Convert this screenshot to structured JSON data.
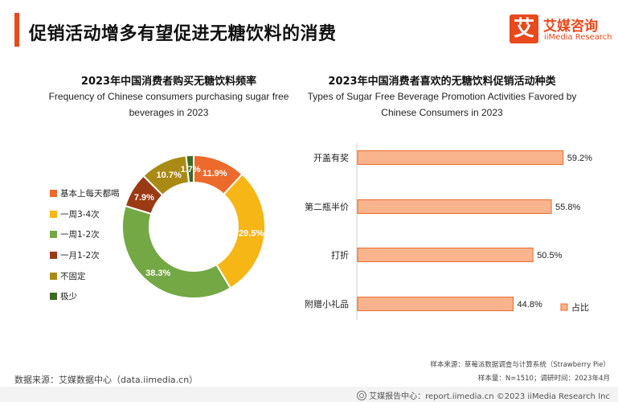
{
  "header": {
    "title": "促销活动增多有望促进无糖饮料的消费",
    "logo_mark": "艾",
    "logo_cn": "艾媒咨询",
    "logo_en": "iiMedia Research"
  },
  "footer": {
    "data_source": "数据来源：艾媒数据中心（data.iimedia.cn）",
    "sample_source": "样本来源：草莓派数据调查与计算系统（Strawberry Pie）",
    "sample_size": "样本量：N=1510；调研时间：2023年4月",
    "report_line": "艾媒报告中心：report.iimedia.cn ©2023 iiMedia Research Inc"
  },
  "chart_data": [
    {
      "type": "pie",
      "variant": "donut",
      "title": "2023年中国消费者购买无糖饮料频率",
      "subtitle": "Frequency of Chinese consumers purchasing sugar free beverages in 2023",
      "legend_position": "left",
      "slices": [
        {
          "label": "基本上每天都喝",
          "value": 11.9,
          "display": "11.9%",
          "color": "#ec6a2b"
        },
        {
          "label": "一周3-4次",
          "value": 29.5,
          "display": "29.5%",
          "color": "#f5b616"
        },
        {
          "label": "一周1-2次",
          "value": 38.3,
          "display": "38.3%",
          "color": "#73a845"
        },
        {
          "label": "一月1-2次",
          "value": 7.9,
          "display": "7.9%",
          "color": "#9a3a14"
        },
        {
          "label": "不固定",
          "value": 10.7,
          "display": "10.7%",
          "color": "#a98a14"
        },
        {
          "label": "极少",
          "value": 1.7,
          "display": "1.7%",
          "color": "#3e6b24"
        }
      ]
    },
    {
      "type": "bar",
      "orientation": "horizontal",
      "title": "2023年中国消费者喜欢的无糖饮料促销活动种类",
      "subtitle": "Types of Sugar Free Beverage Promotion Activities Favored by Chinese Consumers in 2023",
      "categories": [
        "开盖有奖",
        "第二瓶半价",
        "打折",
        "附赠小礼品"
      ],
      "series": [
        {
          "name": "占比",
          "values": [
            59.2,
            55.8,
            50.5,
            44.8
          ],
          "display": [
            "59.2%",
            "55.8%",
            "50.5%",
            "44.8%"
          ],
          "color": "#f9b48d",
          "border_color": "#ec6a2b"
        }
      ],
      "xlim": [
        0,
        100
      ],
      "legend_position": "bottom-right",
      "grid": false
    }
  ]
}
